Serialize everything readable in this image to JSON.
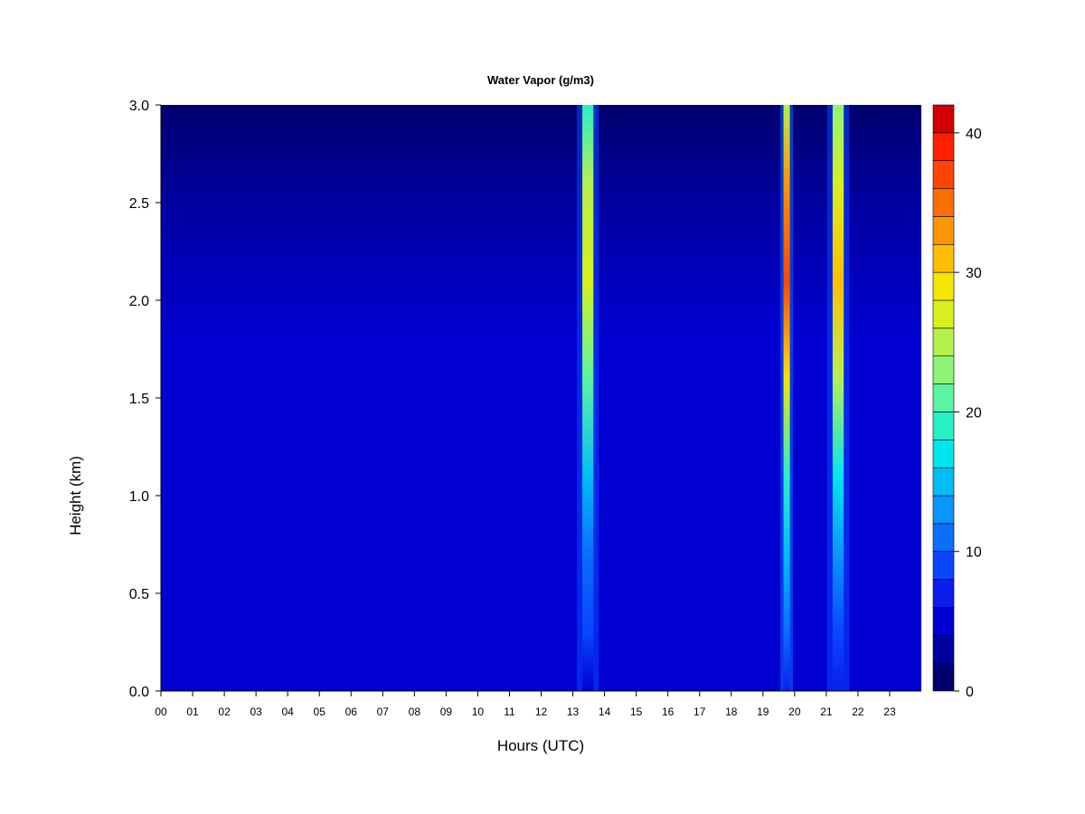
{
  "chart_data": {
    "type": "heatmap",
    "title": "Water Vapor (g/m3)",
    "xlabel": "Hours (UTC)",
    "ylabel": "Height (km)",
    "xlim": [
      0,
      24
    ],
    "ylim": [
      0,
      3
    ],
    "x_ticks": [
      "00",
      "01",
      "02",
      "03",
      "04",
      "05",
      "06",
      "07",
      "08",
      "09",
      "10",
      "11",
      "12",
      "13",
      "14",
      "15",
      "16",
      "17",
      "18",
      "19",
      "20",
      "21",
      "22",
      "23"
    ],
    "y_ticks": [
      "0.0",
      "0.5",
      "1.0",
      "1.5",
      "2.0",
      "2.5",
      "3.0"
    ],
    "colorbar": {
      "range": [
        0,
        42
      ],
      "tick_labels": [
        "0",
        "10",
        "20",
        "30",
        "40"
      ],
      "levels": [
        0,
        2,
        4,
        6,
        8,
        10,
        12,
        14,
        16,
        18,
        20,
        22,
        24,
        26,
        28,
        30,
        32,
        34,
        36,
        38,
        40,
        42
      ],
      "colors": [
        "#00006e",
        "#0000a0",
        "#0000d2",
        "#0a1ef0",
        "#0a46ff",
        "#0a6eff",
        "#0a96ff",
        "#00bef5",
        "#00e6f0",
        "#28f0c8",
        "#5af5a0",
        "#8cf578",
        "#b4f050",
        "#d7f01e",
        "#f5e600",
        "#ffbe00",
        "#ff9600",
        "#ff6e00",
        "#ff4600",
        "#ff1e00",
        "#d20000",
        "#8c0000"
      ]
    },
    "background_field": [
      {
        "height_km": 0.0,
        "value_g_m3": 5
      },
      {
        "height_km": 1.8,
        "value_g_m3": 5
      },
      {
        "height_km": 2.5,
        "value_g_m3": 3
      },
      {
        "height_km": 3.0,
        "value_g_m3": 1
      }
    ],
    "bands": [
      {
        "name": "moist column near 13-14 UTC",
        "start_hour": 13.3,
        "end_hour": 13.65,
        "peak_g_m3": 27
      },
      {
        "name": "moist column near 19-20 UTC",
        "start_hour": 19.65,
        "end_hour": 19.85,
        "peak_g_m3": 36
      },
      {
        "name": "moist column near 21-22 UTC",
        "start_hour": 21.2,
        "end_hour": 21.55,
        "peak_g_m3": 31
      }
    ]
  }
}
